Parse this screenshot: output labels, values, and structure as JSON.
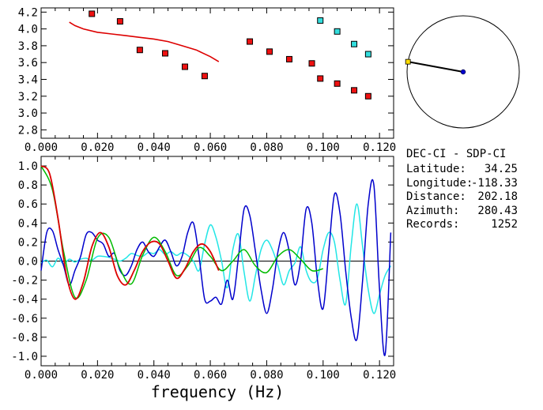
{
  "station_pair": "DEC-CI - SDP-CI",
  "info": [
    {
      "label": "Latitude:",
      "value": "34.25"
    },
    {
      "label": "Longitude:",
      "value": "-118.33"
    },
    {
      "label": "Distance:",
      "value": "202.18"
    },
    {
      "label": "Azimuth:",
      "value": "280.43"
    },
    {
      "label": "Records:",
      "value": "1252"
    }
  ],
  "colors": {
    "red": "#dd0000",
    "green": "#00bb00",
    "blue": "#0000cc",
    "cyan": "#22e6e6",
    "marker_red": "#ee1111",
    "marker_cyan": "#33dddd",
    "compass_marker": "#ffdd00"
  },
  "compass": {
    "azimuth_deg": 280.43
  },
  "chart_data": [
    {
      "type": "scatter",
      "title": "",
      "xlim": [
        0.0,
        0.125
      ],
      "ylim": [
        2.7,
        4.25
      ],
      "x_ticks": [
        "0.000",
        "0.020",
        "0.040",
        "0.060",
        "0.080",
        "0.100",
        "0.120"
      ],
      "x_tick_values": [
        0.0,
        0.02,
        0.04,
        0.06,
        0.08,
        0.1,
        0.12
      ],
      "y_ticks": [
        "2.8",
        "3.0",
        "3.2",
        "3.4",
        "3.6",
        "3.8",
        "4.0",
        "4.2"
      ],
      "y_tick_values": [
        2.8,
        3.0,
        3.2,
        3.4,
        3.6,
        3.8,
        4.0,
        4.2
      ],
      "series": [
        {
          "name": "red-squares",
          "kind": "points",
          "color": "#ee1111",
          "x": [
            0.018,
            0.028,
            0.035,
            0.044,
            0.051,
            0.058,
            0.074,
            0.081,
            0.088,
            0.096,
            0.099,
            0.105,
            0.111,
            0.116
          ],
          "y": [
            4.18,
            4.09,
            3.75,
            3.71,
            3.55,
            3.44,
            3.85,
            3.73,
            3.64,
            3.59,
            3.41,
            3.35,
            3.27,
            3.2
          ]
        },
        {
          "name": "cyan-squares",
          "kind": "points",
          "color": "#33dddd",
          "x": [
            0.099,
            0.105,
            0.111,
            0.116
          ],
          "y": [
            4.1,
            3.97,
            3.82,
            3.7
          ]
        },
        {
          "name": "red-curve",
          "kind": "line",
          "color": "#dd0000",
          "x": [
            0.01,
            0.012,
            0.015,
            0.02,
            0.025,
            0.03,
            0.035,
            0.04,
            0.045,
            0.05,
            0.055,
            0.06,
            0.063
          ],
          "y": [
            4.08,
            4.04,
            4.0,
            3.96,
            3.94,
            3.92,
            3.9,
            3.88,
            3.85,
            3.8,
            3.75,
            3.67,
            3.61
          ]
        }
      ]
    },
    {
      "type": "line",
      "title": "",
      "xlabel": "frequency (Hz)",
      "ylabel": "",
      "xlim": [
        0.0,
        0.125
      ],
      "ylim": [
        -1.1,
        1.1
      ],
      "x_ticks": [
        "0.000",
        "0.020",
        "0.040",
        "0.060",
        "0.080",
        "0.100",
        "0.120"
      ],
      "x_tick_values": [
        0.0,
        0.02,
        0.04,
        0.06,
        0.08,
        0.1,
        0.12
      ],
      "y_ticks": [
        "1.0",
        "0.8",
        "0.6",
        "0.4",
        "0.2",
        "0.0",
        "-0.2",
        "-0.4",
        "-0.6",
        "-0.8",
        "-1.0"
      ],
      "y_tick_values": [
        1.0,
        0.8,
        0.6,
        0.4,
        0.2,
        0.0,
        -0.2,
        -0.4,
        -0.6,
        -0.8,
        -1.0
      ],
      "zero_line": true,
      "series": [
        {
          "name": "cyan",
          "color": "#22e6e6",
          "x": [
            0.0,
            0.002,
            0.004,
            0.006,
            0.008,
            0.01,
            0.012,
            0.014,
            0.016,
            0.018,
            0.02,
            0.022,
            0.024,
            0.026,
            0.028,
            0.03,
            0.032,
            0.034,
            0.036,
            0.038,
            0.04,
            0.042,
            0.044,
            0.046,
            0.048,
            0.05,
            0.052,
            0.054,
            0.056,
            0.058,
            0.06,
            0.062,
            0.064,
            0.066,
            0.068,
            0.07,
            0.072,
            0.074,
            0.076,
            0.078,
            0.08,
            0.082,
            0.084,
            0.086,
            0.088,
            0.09,
            0.092,
            0.094,
            0.096,
            0.098,
            0.1,
            0.102,
            0.104,
            0.106,
            0.108,
            0.11,
            0.112,
            0.114,
            0.116,
            0.118,
            0.12,
            0.122,
            0.124
          ],
          "y": [
            -0.02,
            0.01,
            -0.06,
            0.03,
            -0.03,
            0.02,
            -0.01,
            0.02,
            0.03,
            0.01,
            0.05,
            0.05,
            0.04,
            0.02,
            0.0,
            0.03,
            0.08,
            0.06,
            0.05,
            0.09,
            0.08,
            0.12,
            0.07,
            0.1,
            0.06,
            0.09,
            0.06,
            0.0,
            -0.1,
            0.18,
            0.38,
            0.25,
            0.0,
            -0.28,
            0.12,
            0.28,
            -0.12,
            -0.42,
            -0.15,
            0.12,
            0.22,
            0.12,
            -0.05,
            -0.25,
            -0.1,
            -0.02,
            0.15,
            -0.1,
            -0.22,
            -0.18,
            0.12,
            0.3,
            0.2,
            -0.2,
            -0.45,
            0.18,
            0.6,
            0.15,
            -0.3,
            -0.55,
            -0.35,
            -0.15,
            -0.05
          ]
        },
        {
          "name": "blue",
          "color": "#0000cc",
          "x": [
            0.0,
            0.002,
            0.004,
            0.006,
            0.008,
            0.01,
            0.012,
            0.014,
            0.016,
            0.018,
            0.02,
            0.022,
            0.024,
            0.026,
            0.028,
            0.03,
            0.032,
            0.034,
            0.036,
            0.038,
            0.04,
            0.042,
            0.044,
            0.046,
            0.048,
            0.05,
            0.052,
            0.054,
            0.056,
            0.058,
            0.06,
            0.062,
            0.064,
            0.066,
            0.068,
            0.07,
            0.072,
            0.074,
            0.076,
            0.078,
            0.08,
            0.082,
            0.084,
            0.086,
            0.088,
            0.09,
            0.092,
            0.094,
            0.096,
            0.098,
            0.1,
            0.102,
            0.104,
            0.106,
            0.108,
            0.11,
            0.112,
            0.114,
            0.116,
            0.118,
            0.12,
            0.122,
            0.124
          ],
          "y": [
            -0.1,
            0.3,
            0.32,
            0.12,
            -0.05,
            -0.25,
            -0.1,
            0.05,
            0.28,
            0.3,
            0.22,
            0.18,
            0.05,
            0.08,
            -0.1,
            -0.15,
            -0.05,
            0.12,
            0.2,
            0.1,
            0.05,
            0.15,
            0.22,
            0.1,
            -0.05,
            0.05,
            0.3,
            0.4,
            0.05,
            -0.4,
            -0.42,
            -0.38,
            -0.45,
            -0.2,
            -0.4,
            0.05,
            0.55,
            0.48,
            0.1,
            -0.3,
            -0.55,
            -0.3,
            0.1,
            0.3,
            0.1,
            -0.25,
            0.0,
            0.55,
            0.4,
            -0.2,
            -0.5,
            0.1,
            0.7,
            0.5,
            -0.1,
            -0.6,
            -0.82,
            -0.2,
            0.6,
            0.8,
            -0.3,
            -0.98,
            0.3
          ]
        },
        {
          "name": "green",
          "color": "#00bb00",
          "x": [
            0.0,
            0.004,
            0.008,
            0.012,
            0.016,
            0.02,
            0.024,
            0.028,
            0.032,
            0.036,
            0.04,
            0.044,
            0.048,
            0.052,
            0.056,
            0.06,
            0.064,
            0.068,
            0.072,
            0.076,
            0.08,
            0.084,
            0.088,
            0.092,
            0.096,
            0.1
          ],
          "y": [
            1.0,
            0.75,
            0.1,
            -0.38,
            -0.2,
            0.24,
            0.25,
            -0.08,
            -0.24,
            0.06,
            0.25,
            0.1,
            -0.15,
            -0.05,
            0.14,
            0.05,
            -0.1,
            0.0,
            0.12,
            -0.05,
            -0.12,
            0.05,
            0.12,
            0.02,
            -0.1,
            -0.08
          ]
        },
        {
          "name": "red",
          "color": "#dd0000",
          "x": [
            0.0,
            0.003,
            0.006,
            0.009,
            0.012,
            0.015,
            0.018,
            0.021,
            0.024,
            0.027,
            0.03,
            0.033,
            0.036,
            0.039,
            0.042,
            0.045,
            0.048,
            0.051,
            0.054,
            0.057,
            0.06,
            0.063
          ],
          "y": [
            1.0,
            0.92,
            0.45,
            -0.15,
            -0.4,
            -0.22,
            0.15,
            0.3,
            0.15,
            -0.15,
            -0.25,
            -0.1,
            0.1,
            0.2,
            0.18,
            0.0,
            -0.18,
            -0.08,
            0.1,
            0.18,
            0.1,
            -0.1
          ]
        }
      ]
    }
  ]
}
